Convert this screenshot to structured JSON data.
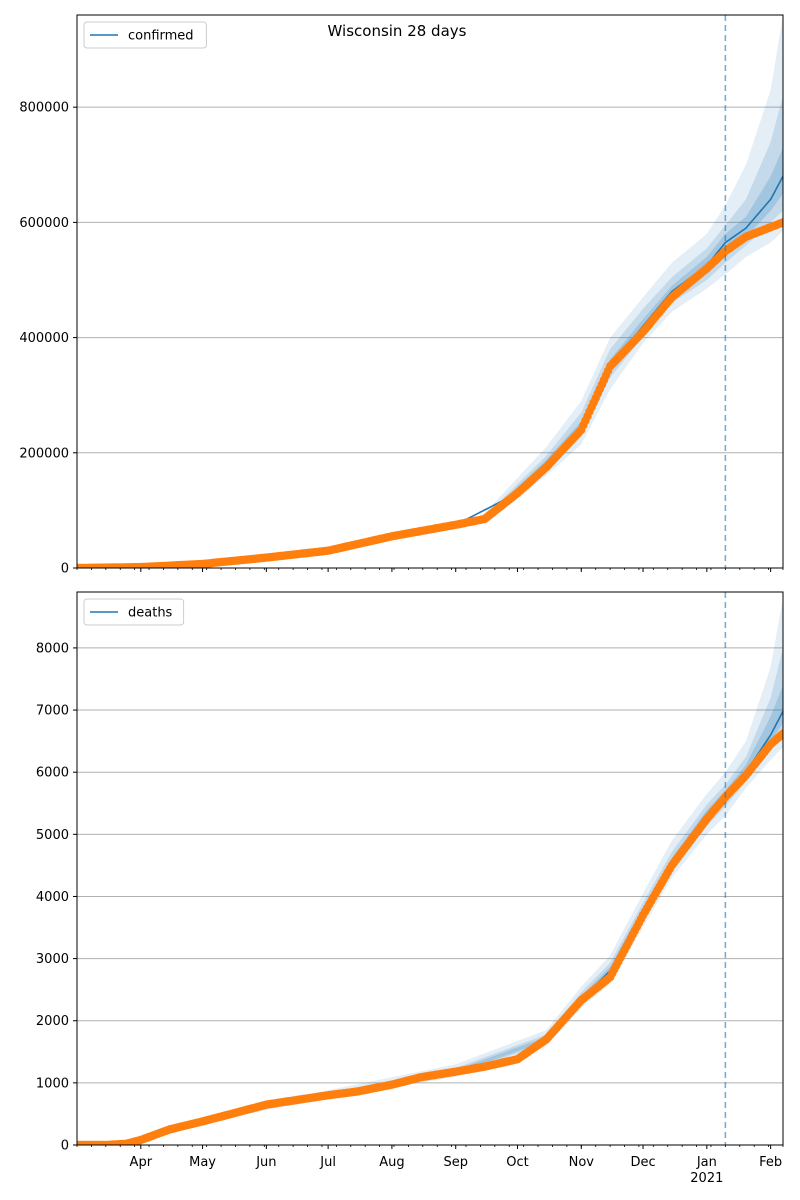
{
  "figure": {
    "title": "Wisconsin 28 days",
    "colors": {
      "model_line": "#1f77b4",
      "observed": "#ff7f0e",
      "band": "#1f77b4",
      "cutoff_line": "#1f77b4",
      "grid": "#b0b0b0"
    }
  },
  "chart_data": [
    {
      "type": "line",
      "title": "Wisconsin 28 days",
      "legend": [
        "confirmed"
      ],
      "legend_position": "top-left",
      "grid": "horizontal",
      "x_range": [
        "2020-03-01",
        "2021-02-07"
      ],
      "ylim": [
        0,
        960000
      ],
      "yticks": [
        0,
        200000,
        400000,
        600000,
        800000
      ],
      "xtick_labels": [
        "Apr",
        "May",
        "Jun",
        "Jul",
        "Aug",
        "Sep",
        "Oct",
        "Nov",
        "Dec",
        "Jan",
        "Feb"
      ],
      "xtick_dates": [
        "2020-04-01",
        "2020-05-01",
        "2020-06-01",
        "2020-07-01",
        "2020-08-01",
        "2020-09-01",
        "2020-10-01",
        "2020-11-01",
        "2020-12-01",
        "2021-01-01",
        "2021-02-01"
      ],
      "year_label": "2021",
      "forecast_start": "2021-01-10",
      "observed": {
        "x": [
          "2020-03-01",
          "2020-04-01",
          "2020-05-01",
          "2020-06-01",
          "2020-07-01",
          "2020-08-01",
          "2020-09-01",
          "2020-09-15",
          "2020-10-01",
          "2020-10-15",
          "2020-11-01",
          "2020-11-15",
          "2020-12-01",
          "2020-12-15",
          "2021-01-01",
          "2021-01-10",
          "2021-01-20",
          "2021-02-07"
        ],
        "y": [
          0,
          1500,
          7000,
          18000,
          30000,
          55000,
          75000,
          85000,
          130000,
          175000,
          240000,
          350000,
          410000,
          470000,
          520000,
          550000,
          575000,
          600000
        ]
      },
      "model": {
        "x": [
          "2020-03-01",
          "2020-04-01",
          "2020-05-01",
          "2020-06-01",
          "2020-07-01",
          "2020-08-01",
          "2020-09-01",
          "2020-10-01",
          "2020-10-15",
          "2020-11-01",
          "2020-11-15",
          "2020-12-01",
          "2020-12-15",
          "2021-01-01",
          "2021-01-10",
          "2021-01-20",
          "2021-02-01",
          "2021-02-07"
        ],
        "y": [
          0,
          1500,
          7000,
          18000,
          30000,
          55000,
          75000,
          130000,
          180000,
          245000,
          350000,
          420000,
          480000,
          525000,
          565000,
          590000,
          640000,
          680000
        ]
      },
      "bands": [
        {
          "x": [
            "2020-09-15",
            "2020-10-15",
            "2020-11-01",
            "2020-11-15",
            "2020-12-01",
            "2020-12-15",
            "2021-01-01",
            "2021-01-10",
            "2021-01-20",
            "2021-02-01",
            "2021-02-07"
          ],
          "low": [
            75000,
            160000,
            215000,
            310000,
            390000,
            445000,
            485000,
            510000,
            540000,
            565000,
            585000
          ],
          "high": [
            95000,
            210000,
            290000,
            400000,
            470000,
            530000,
            580000,
            630000,
            700000,
            830000,
            960000
          ]
        },
        {
          "x": [
            "2020-09-15",
            "2020-10-15",
            "2020-11-01",
            "2020-11-15",
            "2020-12-01",
            "2020-12-15",
            "2021-01-01",
            "2021-01-10",
            "2021-01-20",
            "2021-02-01",
            "2021-02-07"
          ],
          "low": [
            80000,
            170000,
            228000,
            330000,
            402000,
            460000,
            500000,
            530000,
            560000,
            600000,
            620000
          ],
          "high": [
            90000,
            195000,
            270000,
            380000,
            450000,
            505000,
            555000,
            595000,
            640000,
            740000,
            820000
          ]
        },
        {
          "x": [
            "2020-09-15",
            "2020-10-15",
            "2020-11-01",
            "2020-11-15",
            "2020-12-01",
            "2020-12-15",
            "2021-01-01",
            "2021-01-10",
            "2021-01-20",
            "2021-02-01",
            "2021-02-07"
          ],
          "low": [
            83000,
            175000,
            236000,
            340000,
            410000,
            470000,
            512000,
            548000,
            575000,
            620000,
            650000
          ],
          "high": [
            87000,
            188000,
            255000,
            362000,
            432000,
            490000,
            540000,
            580000,
            610000,
            680000,
            730000
          ]
        }
      ]
    },
    {
      "type": "line",
      "legend": [
        "deaths"
      ],
      "legend_position": "top-left",
      "grid": "horizontal",
      "x_range": [
        "2020-03-01",
        "2021-02-07"
      ],
      "ylim": [
        0,
        8900
      ],
      "yticks": [
        0,
        1000,
        2000,
        3000,
        4000,
        5000,
        6000,
        7000,
        8000
      ],
      "xtick_labels": [
        "Apr",
        "May",
        "Jun",
        "Jul",
        "Aug",
        "Sep",
        "Oct",
        "Nov",
        "Dec",
        "Jan",
        "Feb"
      ],
      "xtick_dates": [
        "2020-04-01",
        "2020-05-01",
        "2020-06-01",
        "2020-07-01",
        "2020-08-01",
        "2020-09-01",
        "2020-10-01",
        "2020-11-01",
        "2020-12-01",
        "2021-01-01",
        "2021-02-01"
      ],
      "year_label": "2021",
      "forecast_start": "2021-01-10",
      "observed": {
        "x": [
          "2020-03-01",
          "2020-03-15",
          "2020-03-25",
          "2020-04-01",
          "2020-04-15",
          "2020-05-01",
          "2020-05-15",
          "2020-06-01",
          "2020-06-15",
          "2020-07-01",
          "2020-07-15",
          "2020-08-01",
          "2020-08-15",
          "2020-09-01",
          "2020-09-15",
          "2020-10-01",
          "2020-10-15",
          "2020-11-01",
          "2020-11-15",
          "2020-12-01",
          "2020-12-15",
          "2021-01-01",
          "2021-01-10",
          "2021-01-20",
          "2021-02-01",
          "2021-02-07"
        ],
        "y": [
          0,
          0,
          20,
          80,
          250,
          380,
          500,
          650,
          720,
          800,
          860,
          970,
          1090,
          1180,
          1260,
          1380,
          1700,
          2330,
          2700,
          3700,
          4500,
          5250,
          5600,
          5950,
          6450,
          6620
        ]
      },
      "model": {
        "x": [
          "2020-03-01",
          "2020-03-25",
          "2020-04-01",
          "2020-04-15",
          "2020-05-01",
          "2020-05-15",
          "2020-06-01",
          "2020-06-15",
          "2020-07-01",
          "2020-07-15",
          "2020-08-01",
          "2020-08-15",
          "2020-09-01",
          "2020-09-15",
          "2020-10-01",
          "2020-10-15",
          "2020-11-01",
          "2020-11-15",
          "2020-12-01",
          "2020-12-15",
          "2021-01-01",
          "2021-01-10",
          "2021-01-20",
          "2021-02-01",
          "2021-02-07"
        ],
        "y": [
          0,
          20,
          80,
          250,
          380,
          500,
          650,
          720,
          800,
          860,
          970,
          1090,
          1180,
          1260,
          1380,
          1700,
          2350,
          2800,
          3750,
          4550,
          5300,
          5620,
          6000,
          6600,
          6980
        ]
      },
      "bands": [
        {
          "x": [
            "2020-05-15",
            "2020-07-01",
            "2020-09-01",
            "2020-10-15",
            "2020-11-01",
            "2020-11-15",
            "2020-12-01",
            "2020-12-15",
            "2021-01-01",
            "2021-01-10",
            "2021-01-20",
            "2021-02-01",
            "2021-02-07"
          ],
          "low": [
            450,
            750,
            1100,
            1600,
            2200,
            2600,
            3500,
            4300,
            5000,
            5300,
            5750,
            6200,
            6400
          ],
          "high": [
            560,
            880,
            1300,
            1850,
            2550,
            3050,
            4050,
            4900,
            5650,
            6000,
            6500,
            7700,
            8800
          ]
        },
        {
          "x": [
            "2020-05-15",
            "2020-07-01",
            "2020-09-01",
            "2020-10-15",
            "2020-11-01",
            "2020-11-15",
            "2020-12-01",
            "2020-12-15",
            "2021-01-01",
            "2021-01-10",
            "2021-01-20",
            "2021-02-01",
            "2021-02-07"
          ],
          "low": [
            470,
            770,
            1130,
            1640,
            2260,
            2680,
            3600,
            4400,
            5130,
            5450,
            5850,
            6350,
            6600
          ],
          "high": [
            540,
            840,
            1240,
            1780,
            2460,
            2930,
            3900,
            4720,
            5480,
            5800,
            6250,
            7200,
            8000
          ]
        },
        {
          "x": [
            "2020-05-15",
            "2020-07-01",
            "2020-09-01",
            "2020-10-15",
            "2020-11-01",
            "2020-11-15",
            "2020-12-01",
            "2020-12-15",
            "2021-01-01",
            "2021-01-10",
            "2021-01-20",
            "2021-02-01",
            "2021-02-07"
          ],
          "low": [
            485,
            785,
            1155,
            1670,
            2300,
            2740,
            3680,
            4480,
            5220,
            5530,
            5920,
            6480,
            6800
          ],
          "high": [
            520,
            820,
            1210,
            1740,
            2400,
            2870,
            3820,
            4620,
            5390,
            5710,
            6120,
            6900,
            7400
          ]
        }
      ]
    }
  ]
}
